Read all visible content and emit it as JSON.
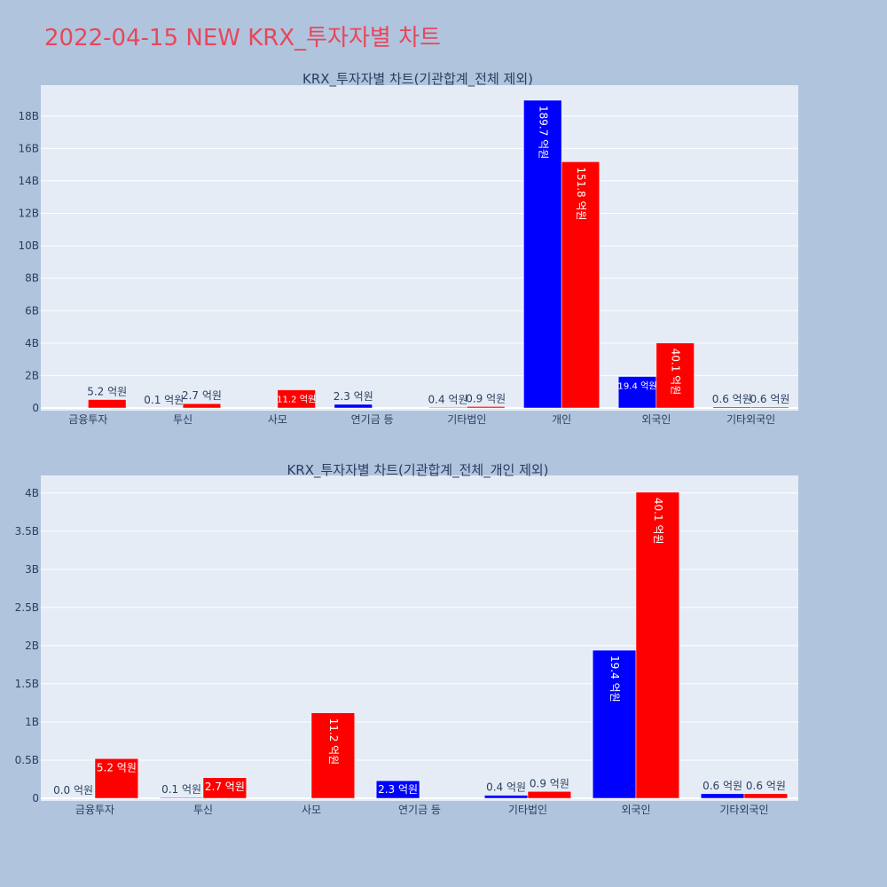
{
  "title": "2022-04-15 NEW KRX_투자자별 차트",
  "colors": {
    "buy": "#0000ff",
    "sell": "#ff0000",
    "plot_bg": "#e5ecf6",
    "paper_bg": "#b0c4de",
    "grid": "#ffffff",
    "title": "#e8475a"
  },
  "chart_data": [
    {
      "type": "bar",
      "title": "KRX_투자자별 차트(기관합계_전체 제외)",
      "categories": [
        "금융투자",
        "투신",
        "사모",
        "연기금 등",
        "기타법인",
        "개인",
        "외국인",
        "기타외국인"
      ],
      "series": [
        {
          "color": "#0000ff",
          "values": [
            0.0,
            0.01,
            0.0,
            0.23,
            0.04,
            18.97,
            1.94,
            0.06
          ],
          "labels": [
            "",
            "0.1 억원",
            "",
            "2.3 억원",
            "0.4 억원",
            "189.7 억원",
            "19.4 억원",
            "0.6 억원"
          ]
        },
        {
          "color": "#ff0000",
          "values": [
            0.52,
            0.27,
            1.12,
            0.0,
            0.09,
            15.18,
            4.01,
            0.06
          ],
          "labels": [
            "5.2 억원",
            "2.7 억원",
            "11.2 억원",
            "",
            "0.9 억원",
            "151.8 억원",
            "40.1 억원",
            "0.6 억원"
          ]
        }
      ],
      "yticks": [
        "0",
        "2B",
        "4B",
        "6B",
        "8B",
        "10B",
        "12B",
        "14B",
        "16B",
        "18B"
      ],
      "ylim": [
        0,
        19.9
      ]
    },
    {
      "type": "bar",
      "title": "KRX_투자자별 차트(기관합계_전체_개인 제외)",
      "categories": [
        "금융투자",
        "투신",
        "사모",
        "연기금 등",
        "기타법인",
        "외국인",
        "기타외국인"
      ],
      "series": [
        {
          "color": "#0000ff",
          "values": [
            0.0,
            0.01,
            0.0,
            0.23,
            0.04,
            1.94,
            0.06
          ],
          "labels": [
            "0.0 억원",
            "0.1 억원",
            "",
            "2.3 억원",
            "0.4 억원",
            "19.4 억원",
            "0.6 억원"
          ]
        },
        {
          "color": "#ff0000",
          "values": [
            0.52,
            0.27,
            1.12,
            0.0,
            0.09,
            4.01,
            0.06
          ],
          "labels": [
            "5.2 억원",
            "2.7 억원",
            "11.2 억원",
            "",
            "0.9 억원",
            "40.1 억원",
            "0.6 억원"
          ]
        }
      ],
      "yticks": [
        "0",
        "0.5B",
        "1B",
        "1.5B",
        "2B",
        "2.5B",
        "3B",
        "3.5B",
        "4B"
      ],
      "ylim": [
        0,
        4.23
      ]
    }
  ]
}
